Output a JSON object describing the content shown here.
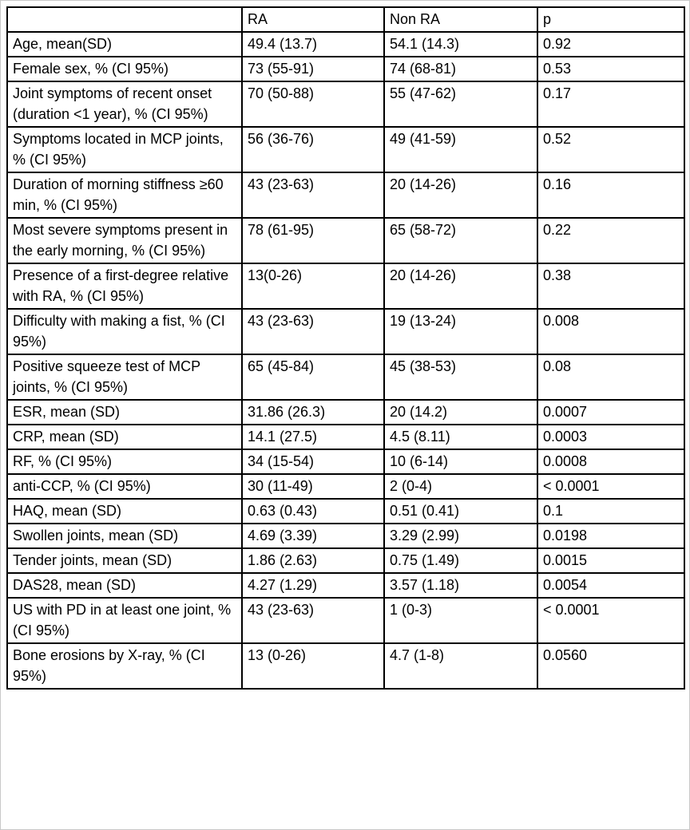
{
  "table": {
    "columns": [
      "",
      "RA",
      "Non RA",
      "p"
    ],
    "rows": [
      {
        "label": "Age, mean(SD)",
        "ra": "49.4 (13.7)",
        "non_ra": "54.1 (14.3)",
        "p": "0.92"
      },
      {
        "label": "Female sex, % (CI 95%)",
        "ra": "73 (55-91)",
        "non_ra": "74 (68-81)",
        "p": "0.53"
      },
      {
        "label": "Joint symptoms of recent onset (duration <1 year), % (CI 95%)",
        "ra": "70 (50-88)",
        "non_ra": "55 (47-62)",
        "p": "0.17"
      },
      {
        "label": "Symptoms located in MCP joints, % (CI 95%)",
        "ra": "56 (36-76)",
        "non_ra": "49 (41-59)",
        "p": "0.52"
      },
      {
        "label": "Duration of morning stiffness ≥60 min, % (CI 95%)",
        "ra": "43 (23-63)",
        "non_ra": "20 (14-26)",
        "p": "0.16"
      },
      {
        "label": "Most severe symptoms present in the early morning, % (CI 95%)",
        "ra": "78 (61-95)",
        "non_ra": "65 (58-72)",
        "p": "0.22"
      },
      {
        "label": "Presence of a first-degree relative with RA, % (CI 95%)",
        "ra": "13(0-26)",
        "non_ra": "20 (14-26)",
        "p": "0.38"
      },
      {
        "label": "Difficulty with making a fist, % (CI 95%)",
        "ra": "43 (23-63)",
        "non_ra": "19 (13-24)",
        "p": "0.008"
      },
      {
        "label": "Positive squeeze test of MCP joints, % (CI 95%)",
        "ra": "65 (45-84)",
        "non_ra": "45 (38-53)",
        "p": "0.08"
      },
      {
        "label": "ESR, mean (SD)",
        "ra": "31.86 (26.3)",
        "non_ra": "20 (14.2)",
        "p": "0.0007"
      },
      {
        "label": "CRP, mean (SD)",
        "ra": "14.1 (27.5)",
        "non_ra": "4.5 (8.11)",
        "p": "0.0003"
      },
      {
        "label": "RF, % (CI 95%)",
        "ra": "34 (15-54)",
        "non_ra": "10 (6-14)",
        "p": "0.0008"
      },
      {
        "label": "anti-CCP, % (CI 95%)",
        "ra": "30 (11-49)",
        "non_ra": "2 (0-4)",
        "p": "< 0.0001"
      },
      {
        "label": "HAQ, mean (SD)",
        "ra": "0.63 (0.43)",
        "non_ra": "0.51 (0.41)",
        "p": "0.1"
      },
      {
        "label": "Swollen joints, mean (SD)",
        "ra": "4.69 (3.39)",
        "non_ra": "3.29 (2.99)",
        "p": "0.0198"
      },
      {
        "label": "Tender joints, mean (SD)",
        "ra": "1.86 (2.63)",
        "non_ra": "0.75 (1.49)",
        "p": "0.0015"
      },
      {
        "label": "DAS28, mean (SD)",
        "ra": "4.27 (1.29)",
        "non_ra": "3.57 (1.18)",
        "p": "0.0054"
      },
      {
        "label": "US with PD in at least one joint, % (CI 95%)",
        "ra": "43 (23-63)",
        "non_ra": "1 (0-3)",
        "p": "< 0.0001"
      },
      {
        "label": "Bone erosions by X-ray, % (CI 95%)",
        "ra": "13 (0-26)",
        "non_ra": "4.7 (1-8)",
        "p": "0.0560"
      }
    ]
  }
}
